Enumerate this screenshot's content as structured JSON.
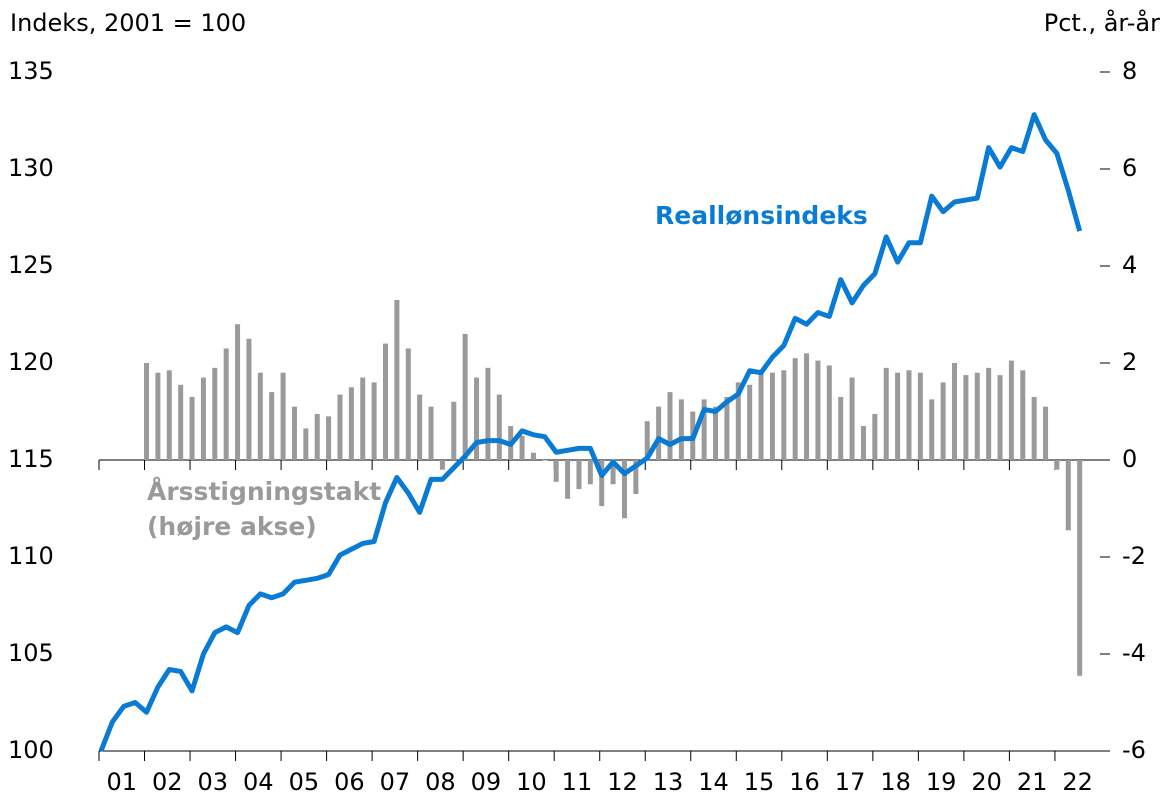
{
  "chart_data": {
    "type": "bar_line",
    "y_axis_label": "Indeks, 2001 = 100",
    "y2_axis_label": "Pct., år-år",
    "annotations": [
      "Reallønsindeks",
      "Årsstigningstakt",
      "(højre akse)"
    ],
    "categories": [
      null,
      "01",
      null,
      null,
      null,
      "02",
      null,
      null,
      null,
      "03",
      null,
      null,
      null,
      "04",
      null,
      null,
      null,
      "05",
      null,
      null,
      null,
      "06",
      null,
      null,
      null,
      "07",
      null,
      null,
      null,
      "08",
      null,
      null,
      null,
      "09",
      null,
      null,
      null,
      "10",
      null,
      null,
      null,
      "11",
      null,
      null,
      null,
      "12",
      null,
      null,
      null,
      "13",
      null,
      null,
      null,
      "14",
      null,
      null,
      null,
      "15",
      null,
      null,
      null,
      "16",
      null,
      null,
      null,
      "17",
      null,
      null,
      null,
      "18",
      null,
      null,
      null,
      "19",
      null,
      null,
      null,
      "20",
      null,
      null,
      null,
      "21",
      null,
      null,
      null,
      "22",
      null,
      null
    ],
    "series": [
      {
        "name": "Reallønsindeks",
        "kind": "line",
        "color": "#0a7bd4",
        "values": [
          100,
          101.5,
          102.3,
          102.5,
          102.0,
          103.3,
          104.2,
          104.1,
          103.1,
          105.0,
          106.1,
          106.4,
          106.1,
          107.5,
          108.1,
          107.9,
          108.1,
          108.7,
          108.8,
          108.9,
          109.1,
          110.1,
          110.4,
          110.7,
          110.8,
          112.8,
          114.1,
          113.3,
          112.3,
          114.0,
          114.0,
          114.6,
          115.2,
          115.9,
          116.0,
          116.0,
          115.8,
          116.5,
          116.3,
          116.2,
          115.4,
          115.5,
          115.6,
          115.6,
          114.2,
          114.9,
          114.3,
          114.7,
          115.1,
          116.1,
          115.8,
          116.1,
          116.1,
          117.6,
          117.5,
          118.0,
          118.4,
          119.6,
          119.5,
          120.3,
          120.9,
          122.3,
          122.0,
          122.6,
          122.4,
          124.3,
          123.1,
          124.0,
          124.6,
          126.5,
          125.2,
          126.2,
          126.2,
          128.6,
          127.8,
          128.3,
          128.4,
          128.5,
          131.1,
          130.1,
          131.1,
          130.9,
          132.8,
          131.5,
          130.8,
          128.9,
          126.8,
          null
        ]
      },
      {
        "name": "Årsstigningstakt",
        "kind": "bar",
        "axis": "y2",
        "color": "#9a9a9a",
        "values": [
          null,
          null,
          null,
          null,
          2.0,
          1.8,
          1.85,
          1.55,
          1.3,
          1.7,
          1.9,
          2.3,
          2.8,
          2.5,
          1.8,
          1.4,
          1.8,
          1.1,
          0.65,
          0.95,
          0.9,
          1.35,
          1.5,
          1.7,
          1.6,
          2.4,
          3.3,
          2.3,
          1.35,
          1.1,
          -0.2,
          1.2,
          2.6,
          1.7,
          1.9,
          1.35,
          0.7,
          0.5,
          0.15,
          0,
          -0.45,
          -0.8,
          -0.6,
          -0.5,
          -0.95,
          -0.5,
          -1.2,
          -0.7,
          0.8,
          1.1,
          1.4,
          1.25,
          1.0,
          1.25,
          1.1,
          1.3,
          1.6,
          1.55,
          1.85,
          1.8,
          1.85,
          2.1,
          2.2,
          2.05,
          1.95,
          1.3,
          1.7,
          0.7,
          0.95,
          1.9,
          1.8,
          1.85,
          1.8,
          1.25,
          1.6,
          2.0,
          1.75,
          1.8,
          1.9,
          1.75,
          2.05,
          1.85,
          1.3,
          1.1,
          -0.2,
          -1.45,
          -4.45,
          null
        ]
      }
    ],
    "ylim": [
      100,
      135
    ],
    "yticks": [
      100,
      105,
      110,
      115,
      120,
      125,
      130,
      135
    ],
    "y2lim": [
      -6,
      8
    ],
    "y2ticks": [
      -6,
      -4,
      -2,
      0,
      2,
      4,
      6,
      8
    ]
  }
}
